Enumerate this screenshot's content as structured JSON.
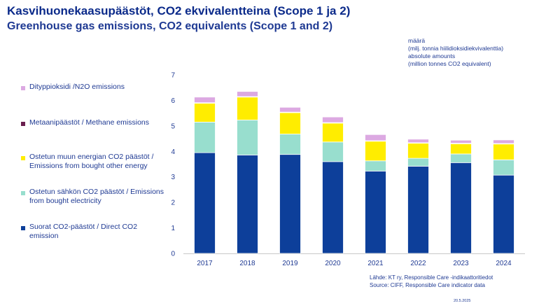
{
  "header": {
    "title": "Kasvihuonekaasupäästöt, CO2 ekvivalentteina (Scope 1 ja 2)",
    "subtitle": "Greenhouse gas emissions, CO2 equivalents (Scope 1 and 2)"
  },
  "unit_note": {
    "line1": "määrä",
    "line2": "(milj. tonnia hiilidioksidiekvivalenttia)",
    "line3": "absolute amounts",
    "line4": "(million tonnes CO2 equivalent)"
  },
  "source": {
    "line1": "Lähde: KT ry, Responsible Care -indikaattoritiedot",
    "line2": "Source: CIFF, Responsible Care indicator data"
  },
  "date": "20.5.2025",
  "chart_data": {
    "type": "bar",
    "stacked": true,
    "categories": [
      "2017",
      "2018",
      "2019",
      "2020",
      "2021",
      "2022",
      "2023",
      "2024"
    ],
    "ylim": [
      0,
      7
    ],
    "yticks": [
      0,
      1,
      2,
      3,
      4,
      5,
      6,
      7
    ],
    "grid": false,
    "legend_position": "left",
    "series": [
      {
        "name": "Suorat CO2-päästöt / Direct CO2 emission",
        "color": "#0d3f9a",
        "values": [
          3.95,
          3.86,
          3.88,
          3.6,
          3.23,
          3.42,
          3.56,
          3.07
        ]
      },
      {
        "name": "Ostetun sähkön CO2 päästöt / Emissions from bought electricity",
        "color": "#98dece",
        "values": [
          1.2,
          1.37,
          0.8,
          0.77,
          0.4,
          0.31,
          0.34,
          0.6
        ]
      },
      {
        "name": "Ostetun muun energian CO2 päästöt / Emissions from bought other energy",
        "color": "#ffed00",
        "values": [
          0.74,
          0.9,
          0.84,
          0.74,
          0.77,
          0.59,
          0.4,
          0.62
        ]
      },
      {
        "name": "Metaanipäästöt / Methane emissions",
        "color": "#6a1f4f",
        "values": [
          0.02,
          0.02,
          0.02,
          0.02,
          0.02,
          0.02,
          0.02,
          0.02
        ]
      },
      {
        "name": "Dityppioksidi /N2O emissions",
        "color": "#dca9e2",
        "values": [
          0.22,
          0.2,
          0.19,
          0.22,
          0.24,
          0.14,
          0.12,
          0.14
        ]
      }
    ],
    "legend_order": [
      4,
      3,
      2,
      1,
      0
    ]
  }
}
